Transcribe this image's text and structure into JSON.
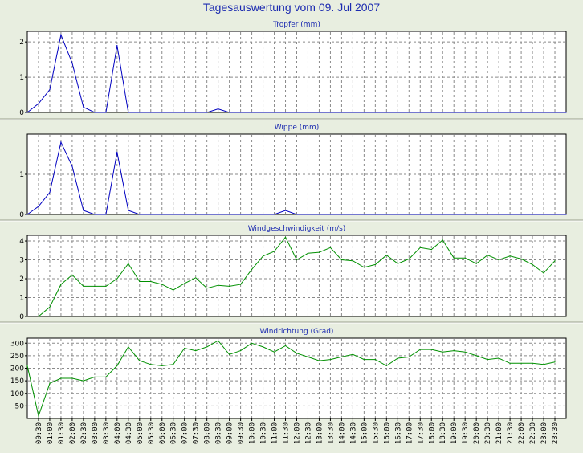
{
  "page": {
    "title": "Tagesauswertung vom 09. Jul 2007"
  },
  "chart_data": [
    {
      "type": "line",
      "title": "Tropfer (mm)",
      "color": "#0000c0",
      "ylim": [
        0,
        2.3
      ],
      "yticks": [
        0,
        1,
        2
      ],
      "grid": true,
      "x": [
        "00:00",
        "00:30",
        "01:00",
        "01:30",
        "02:00",
        "02:30",
        "03:00",
        "03:30",
        "04:00",
        "04:30",
        "05:00",
        "05:30",
        "06:00",
        "06:30",
        "07:00",
        "07:30",
        "08:00",
        "08:30",
        "09:00",
        "09:30",
        "10:00",
        "10:30",
        "11:00",
        "11:30",
        "12:00",
        "12:30",
        "13:00",
        "13:30",
        "14:00",
        "14:30",
        "15:00",
        "15:30",
        "16:00",
        "16:30",
        "17:00",
        "17:30",
        "18:00",
        "18:30",
        "19:00",
        "19:30",
        "20:00",
        "20:30",
        "21:00",
        "21:30",
        "22:00",
        "22:30",
        "23:00",
        "23:30",
        "24:00"
      ],
      "values": [
        0,
        0.25,
        0.65,
        2.2,
        1.4,
        0.15,
        0,
        0,
        1.9,
        0,
        0,
        0,
        0,
        0,
        0,
        0,
        0,
        0.1,
        0,
        0,
        0,
        0,
        0,
        0,
        0,
        0,
        0,
        0,
        0,
        0,
        0,
        0,
        0,
        0,
        0,
        0,
        0,
        0,
        0,
        0,
        0,
        0,
        0,
        0,
        0,
        0,
        0,
        0,
        0
      ]
    },
    {
      "type": "line",
      "title": "Wippe (mm)",
      "color": "#0000c0",
      "ylim": [
        0,
        2.0
      ],
      "yticks": [
        0,
        1
      ],
      "grid": true,
      "x": [
        "00:00",
        "00:30",
        "01:00",
        "01:30",
        "02:00",
        "02:30",
        "03:00",
        "03:30",
        "04:00",
        "04:30",
        "05:00",
        "05:30",
        "06:00",
        "06:30",
        "07:00",
        "07:30",
        "08:00",
        "08:30",
        "09:00",
        "09:30",
        "10:00",
        "10:30",
        "11:00",
        "11:30",
        "12:00",
        "12:30",
        "13:00",
        "13:30",
        "14:00",
        "14:30",
        "15:00",
        "15:30",
        "16:00",
        "16:30",
        "17:00",
        "17:30",
        "18:00",
        "18:30",
        "19:00",
        "19:30",
        "20:00",
        "20:30",
        "21:00",
        "21:30",
        "22:00",
        "22:30",
        "23:00",
        "23:30",
        "24:00"
      ],
      "values": [
        0,
        0.2,
        0.55,
        1.8,
        1.2,
        0.1,
        0,
        0,
        1.55,
        0.1,
        0,
        0,
        0,
        0,
        0,
        0,
        0,
        0,
        0,
        0,
        0,
        0,
        0,
        0.1,
        0,
        0,
        0,
        0,
        0,
        0,
        0,
        0,
        0,
        0,
        0,
        0,
        0,
        0,
        0,
        0,
        0,
        0,
        0,
        0,
        0,
        0,
        0,
        0,
        0
      ]
    },
    {
      "type": "line",
      "title": "Windgeschwindigkeit (m/s)",
      "color": "#009000",
      "ylim": [
        0,
        4.3
      ],
      "yticks": [
        0,
        1,
        2,
        3,
        4
      ],
      "grid": true,
      "x": [
        "00:00",
        "00:30",
        "01:00",
        "01:30",
        "02:00",
        "02:30",
        "03:00",
        "03:30",
        "04:00",
        "04:30",
        "05:00",
        "05:30",
        "06:00",
        "06:30",
        "07:00",
        "07:30",
        "08:00",
        "08:30",
        "09:00",
        "09:30",
        "10:00",
        "10:30",
        "11:00",
        "11:30",
        "12:00",
        "12:30",
        "13:00",
        "13:30",
        "14:00",
        "14:30",
        "15:00",
        "15:30",
        "16:00",
        "16:30",
        "17:00",
        "17:30",
        "18:00",
        "18:30",
        "19:00",
        "19:30",
        "20:00",
        "20:30",
        "21:00",
        "21:30",
        "22:00",
        "22:30",
        "23:00",
        "23:30",
        "24:00"
      ],
      "values": [
        null,
        0,
        0.5,
        1.7,
        2.2,
        1.6,
        1.6,
        1.6,
        2.0,
        2.8,
        1.85,
        1.85,
        1.7,
        1.4,
        1.75,
        2.05,
        1.5,
        1.65,
        1.6,
        1.7,
        2.5,
        3.2,
        3.45,
        4.2,
        3.0,
        3.35,
        3.4,
        3.65,
        3.0,
        2.95,
        2.6,
        2.75,
        3.25,
        2.8,
        3.05,
        3.65,
        3.55,
        4.05,
        3.1,
        3.1,
        2.8,
        3.25,
        3.0,
        3.2,
        3.05,
        2.75,
        2.3,
        2.95,
        null
      ]
    },
    {
      "type": "line",
      "title": "Windrichtung (Grad)",
      "color": "#009000",
      "ylim": [
        0,
        320
      ],
      "yticks": [
        50,
        100,
        150,
        200,
        250,
        300
      ],
      "grid": true,
      "x": [
        "00:00",
        "00:30",
        "01:00",
        "01:30",
        "02:00",
        "02:30",
        "03:00",
        "03:30",
        "04:00",
        "04:30",
        "05:00",
        "05:30",
        "06:00",
        "06:30",
        "07:00",
        "07:30",
        "08:00",
        "08:30",
        "09:00",
        "09:30",
        "10:00",
        "10:30",
        "11:00",
        "11:30",
        "12:00",
        "12:30",
        "13:00",
        "13:30",
        "14:00",
        "14:30",
        "15:00",
        "15:30",
        "16:00",
        "16:30",
        "17:00",
        "17:30",
        "18:00",
        "18:30",
        "19:00",
        "19:30",
        "20:00",
        "20:30",
        "21:00",
        "21:30",
        "22:00",
        "22:30",
        "23:00",
        "23:30",
        "24:00"
      ],
      "values": [
        210,
        10,
        140,
        160,
        160,
        150,
        165,
        165,
        210,
        285,
        230,
        215,
        210,
        215,
        280,
        270,
        285,
        310,
        255,
        270,
        300,
        285,
        265,
        290,
        260,
        245,
        230,
        235,
        245,
        255,
        235,
        235,
        210,
        240,
        245,
        275,
        275,
        265,
        270,
        265,
        250,
        235,
        240,
        220,
        220,
        220,
        215,
        225,
        null
      ]
    }
  ],
  "x_axis": {
    "tick_labels": [
      "00:30",
      "01:00",
      "01:30",
      "02:00",
      "02:30",
      "03:00",
      "03:30",
      "04:00",
      "04:30",
      "05:00",
      "05:30",
      "06:00",
      "06:30",
      "07:00",
      "07:30",
      "08:00",
      "08:30",
      "09:00",
      "09:30",
      "10:00",
      "10:30",
      "11:00",
      "11:30",
      "12:00",
      "12:30",
      "13:00",
      "13:30",
      "14:00",
      "14:30",
      "15:00",
      "15:30",
      "16:00",
      "16:30",
      "17:00",
      "17:30",
      "18:00",
      "18:30",
      "19:00",
      "19:30",
      "20:00",
      "20:30",
      "21:00",
      "21:30",
      "22:00",
      "22:30",
      "23:00",
      "23:30"
    ]
  }
}
